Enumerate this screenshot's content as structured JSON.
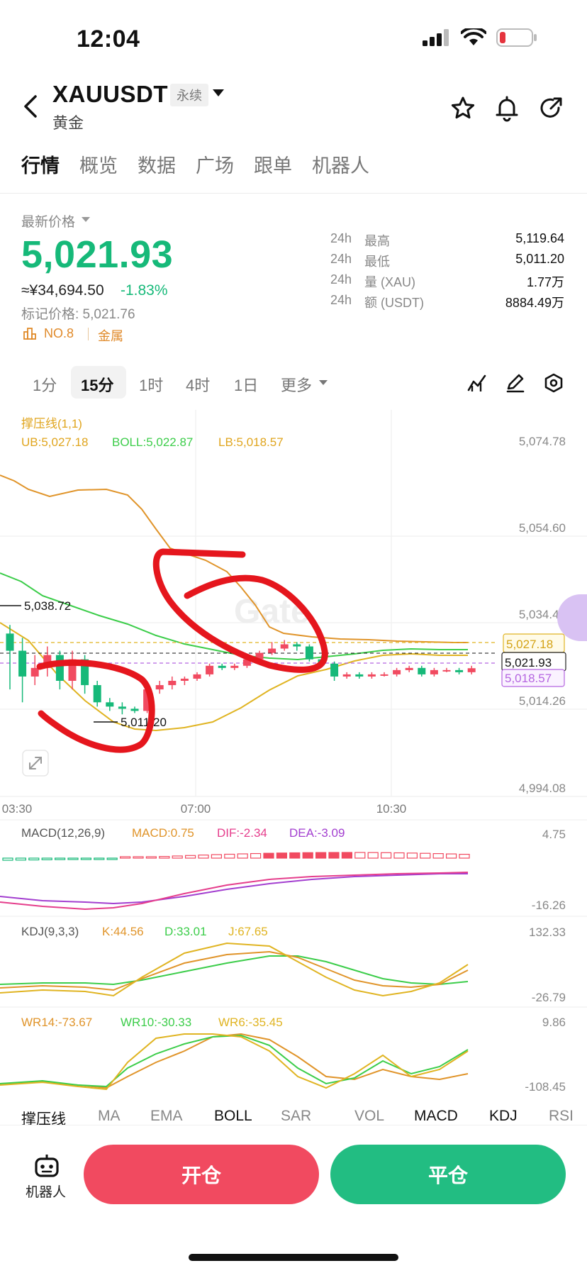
{
  "status_bar": {
    "time": "12:04"
  },
  "header": {
    "pair": "XAUUSDT",
    "contract_type": "永续",
    "subtitle": "黄金"
  },
  "tabs": [
    {
      "label": "行情",
      "active": true
    },
    {
      "label": "概览",
      "active": false
    },
    {
      "label": "数据",
      "active": false
    },
    {
      "label": "广场",
      "active": false
    },
    {
      "label": "跟单",
      "active": false
    },
    {
      "label": "机器人",
      "active": false
    }
  ],
  "price": {
    "label": "最新价格",
    "last": "5,021.93",
    "cny": "≈¥34,694.50",
    "change": "-1.83%",
    "mark": "标记价格: 5,021.76",
    "rank": "NO.8",
    "category": "金属",
    "up_color": "#16b979",
    "down_color": "#f14a60"
  },
  "stats": [
    {
      "period": "24h",
      "label": "最高",
      "value": "5,119.64"
    },
    {
      "period": "24h",
      "label": "最低",
      "value": "5,011.20"
    },
    {
      "period": "24h",
      "label": "量 (XAU)",
      "value": "1.77万"
    },
    {
      "period": "24h",
      "label": "额 (USDT)",
      "value": "8884.49万"
    }
  ],
  "timeframes": {
    "items": [
      "1分",
      "15分",
      "1时",
      "4时",
      "1日"
    ],
    "active": "15分",
    "more": "更多"
  },
  "chart": {
    "overlay_title": "撑压线(1,1)",
    "boll_ub": "UB:5,027.18",
    "boll_mid": "BOLL:5,022.87",
    "boll_lb": "LB:5,018.57",
    "y_ticks": [
      "5,074.78",
      "5,054.60",
      "5,034.43",
      "5,014.26",
      "4,994.08"
    ],
    "x_ticks": [
      "03:30",
      "07:00",
      "10:30"
    ],
    "high_marker": "5,038.72",
    "low_marker": "5,011.20",
    "ub_tag": "5,027.18",
    "last_tag": "5,021.93",
    "lb_tag": "5,018.57",
    "watermark": "Gate",
    "macd_title": "MACD(12,26,9)",
    "macd_val": "MACD:0.75",
    "dif_val": "DIF:-2.34",
    "dea_val": "DEA:-3.09",
    "macd_ticks": [
      "4.75",
      "-16.26"
    ],
    "kdj_title": "KDJ(9,3,3)",
    "k_val": "K:44.56",
    "d_val": "D:33.01",
    "j_val": "J:67.65",
    "kdj_ticks": [
      "132.33",
      "-26.79"
    ],
    "wr14_val": "WR14:-73.67",
    "wr10_val": "WR10:-30.33",
    "wr6_val": "WR6:-35.45",
    "wr_ticks": [
      "9.86",
      "-108.45"
    ]
  },
  "chart_data": {
    "type": "candlestick",
    "y_axis_ticks": [
      5074.78,
      5054.6,
      5034.43,
      5014.26,
      4994.08
    ],
    "x_axis_ticks": [
      "03:30",
      "07:00",
      "10:30"
    ],
    "boll": {
      "ub": 5027.18,
      "mid": 5022.87,
      "lb": 5018.57
    },
    "last_price": 5021.93,
    "high_marker": 5038.72,
    "low_marker": 5011.2,
    "candles": [
      {
        "o": 5030.0,
        "c": 5026.0,
        "h": 5032.0,
        "l": 5017.0
      },
      {
        "o": 5026.0,
        "c": 5020.0,
        "h": 5029.0,
        "l": 5014.0
      },
      {
        "o": 5020.0,
        "c": 5022.0,
        "h": 5025.0,
        "l": 5018.0
      },
      {
        "o": 5022.0,
        "c": 5025.0,
        "h": 5027.0,
        "l": 5020.0
      },
      {
        "o": 5025.0,
        "c": 5019.0,
        "h": 5026.0,
        "l": 5017.0
      },
      {
        "o": 5019.0,
        "c": 5024.0,
        "h": 5026.0,
        "l": 5017.0
      },
      {
        "o": 5024.0,
        "c": 5018.0,
        "h": 5025.0,
        "l": 5016.0
      },
      {
        "o": 5018.0,
        "c": 5014.0,
        "h": 5019.0,
        "l": 5013.0
      },
      {
        "o": 5014.0,
        "c": 5013.0,
        "h": 5015.0,
        "l": 5012.0
      },
      {
        "o": 5013.0,
        "c": 5012.5,
        "h": 5014.0,
        "l": 5011.2
      },
      {
        "o": 5012.5,
        "c": 5012.0,
        "h": 5013.0,
        "l": 5011.5
      },
      {
        "o": 5012.0,
        "c": 5017.0,
        "h": 5018.0,
        "l": 5011.5
      },
      {
        "o": 5017.0,
        "c": 5018.0,
        "h": 5019.0,
        "l": 5016.0
      },
      {
        "o": 5018.0,
        "c": 5019.0,
        "h": 5020.0,
        "l": 5017.0
      },
      {
        "o": 5019.0,
        "c": 5019.5,
        "h": 5020.0,
        "l": 5018.0
      },
      {
        "o": 5019.5,
        "c": 5020.5,
        "h": 5021.0,
        "l": 5019.0
      },
      {
        "o": 5020.5,
        "c": 5022.5,
        "h": 5023.0,
        "l": 5020.0
      },
      {
        "o": 5022.5,
        "c": 5022.0,
        "h": 5023.0,
        "l": 5021.5
      },
      {
        "o": 5022.0,
        "c": 5022.5,
        "h": 5023.0,
        "l": 5021.5
      },
      {
        "o": 5022.5,
        "c": 5024.0,
        "h": 5025.0,
        "l": 5022.0
      },
      {
        "o": 5024.0,
        "c": 5025.5,
        "h": 5026.0,
        "l": 5023.5
      },
      {
        "o": 5025.5,
        "c": 5026.5,
        "h": 5028.0,
        "l": 5025.0
      },
      {
        "o": 5026.5,
        "c": 5027.5,
        "h": 5028.5,
        "l": 5026.0
      },
      {
        "o": 5027.5,
        "c": 5027.0,
        "h": 5028.0,
        "l": 5026.0
      },
      {
        "o": 5027.0,
        "c": 5024.0,
        "h": 5027.5,
        "l": 5023.5
      },
      {
        "o": 5024.0,
        "c": 5023.0,
        "h": 5025.0,
        "l": 5022.5
      },
      {
        "o": 5023.0,
        "c": 5020.0,
        "h": 5023.5,
        "l": 5019.0
      },
      {
        "o": 5020.0,
        "c": 5020.5,
        "h": 5021.0,
        "l": 5019.5
      },
      {
        "o": 5020.5,
        "c": 5020.0,
        "h": 5021.0,
        "l": 5019.5
      },
      {
        "o": 5020.0,
        "c": 5020.5,
        "h": 5021.0,
        "l": 5019.5
      },
      {
        "o": 5020.5,
        "c": 5020.5,
        "h": 5021.0,
        "l": 5020.0
      },
      {
        "o": 5020.5,
        "c": 5021.5,
        "h": 5022.0,
        "l": 5020.0
      },
      {
        "o": 5021.5,
        "c": 5022.0,
        "h": 5022.5,
        "l": 5021.0
      },
      {
        "o": 5022.0,
        "c": 5020.5,
        "h": 5022.5,
        "l": 5020.0
      },
      {
        "o": 5020.5,
        "c": 5021.5,
        "h": 5022.0,
        "l": 5020.0
      },
      {
        "o": 5021.5,
        "c": 5021.5,
        "h": 5022.0,
        "l": 5021.0
      },
      {
        "o": 5021.5,
        "c": 5021.0,
        "h": 5022.0,
        "l": 5020.5
      },
      {
        "o": 5021.0,
        "c": 5021.93,
        "h": 5022.5,
        "l": 5020.5
      }
    ]
  },
  "indicator_tabs": [
    {
      "label": "撑压线",
      "on": true
    },
    {
      "label": "MA",
      "on": false
    },
    {
      "label": "EMA",
      "on": false
    },
    {
      "label": "BOLL",
      "on": true
    },
    {
      "label": "SAR",
      "on": false
    },
    {
      "label": "VOL",
      "on": false
    },
    {
      "label": "MACD",
      "on": true
    },
    {
      "label": "KDJ",
      "on": true
    },
    {
      "label": "RSI",
      "on": false
    }
  ],
  "bottom": {
    "robot_label": "机器人",
    "open_label": "开仓",
    "close_label": "平仓"
  }
}
